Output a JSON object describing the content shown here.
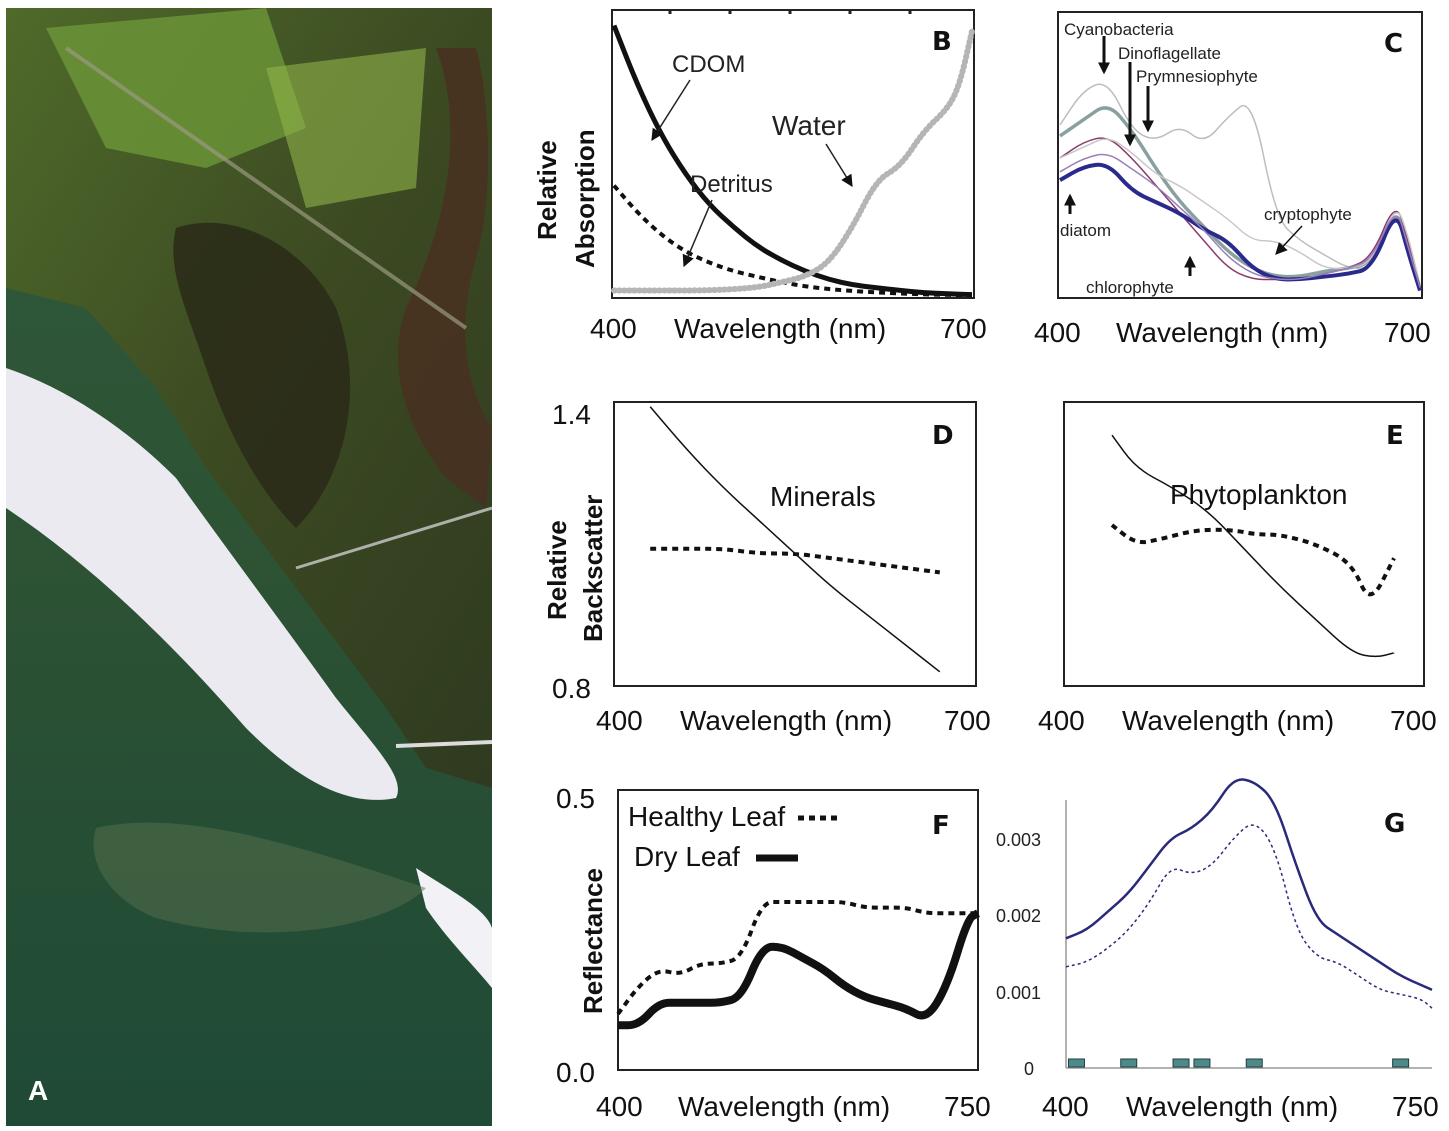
{
  "panel_a": {
    "letter": "A"
  },
  "chart_data": [
    {
      "id": "B",
      "type": "line",
      "letter": "B",
      "ylabel_lines": [
        "Relative",
        "Absorption"
      ],
      "xlabel": "Wavelength (nm)",
      "xlim": [
        400,
        700
      ],
      "ylim": [
        0,
        1
      ],
      "tick_labels_x": [
        "400",
        "700"
      ],
      "series": [
        {
          "name": "CDOM",
          "style": "solid-black",
          "x": [
            400,
            420,
            440,
            460,
            480,
            500,
            520,
            540,
            560,
            580,
            600,
            620,
            640,
            660,
            680,
            700
          ],
          "y": [
            0.98,
            0.76,
            0.58,
            0.44,
            0.33,
            0.25,
            0.18,
            0.13,
            0.09,
            0.06,
            0.04,
            0.03,
            0.02,
            0.012,
            0.008,
            0.005
          ]
        },
        {
          "name": "Detritus",
          "style": "dotted-black",
          "x": [
            400,
            420,
            440,
            460,
            480,
            500,
            520,
            540,
            560,
            580,
            600,
            620,
            640,
            660,
            680,
            700
          ],
          "y": [
            0.4,
            0.3,
            0.22,
            0.16,
            0.12,
            0.09,
            0.07,
            0.05,
            0.035,
            0.025,
            0.018,
            0.013,
            0.009,
            0.006,
            0.004,
            0.003
          ]
        },
        {
          "name": "Water",
          "style": "gray-dots",
          "x": [
            400,
            440,
            480,
            520,
            540,
            560,
            580,
            600,
            620,
            640,
            660,
            680,
            690,
            700
          ],
          "y": [
            0.02,
            0.02,
            0.02,
            0.03,
            0.05,
            0.07,
            0.12,
            0.25,
            0.42,
            0.47,
            0.6,
            0.68,
            0.77,
            0.96
          ]
        }
      ]
    },
    {
      "id": "C",
      "type": "line",
      "letter": "C",
      "xlabel": "Wavelength (nm)",
      "xlim": [
        400,
        700
      ],
      "ylim": [
        0,
        1
      ],
      "tick_labels_x": [
        "400",
        "700"
      ],
      "annotations": [
        "Cyanobacteria",
        "Dinoflagellate",
        "Prymnesiophyte",
        "cryptophyte",
        "diatom",
        "chlorophyte"
      ],
      "series": [
        {
          "name": "Cyanobacteria",
          "color": "#bdbdbd",
          "x": [
            400,
            420,
            440,
            460,
            480,
            500,
            520,
            540,
            560,
            580,
            600,
            620,
            640,
            660,
            680,
            690,
            700
          ],
          "y": [
            0.62,
            0.75,
            0.78,
            0.6,
            0.56,
            0.62,
            0.55,
            0.65,
            0.72,
            0.28,
            0.2,
            0.15,
            0.1,
            0.1,
            0.32,
            0.15,
            0.02
          ]
        },
        {
          "name": "Dinoflagellate",
          "color": "#8aa0a0",
          "x": [
            400,
            420,
            440,
            460,
            480,
            500,
            520,
            540,
            560,
            580,
            600,
            620,
            640,
            660,
            680,
            690,
            700
          ],
          "y": [
            0.58,
            0.64,
            0.7,
            0.6,
            0.46,
            0.34,
            0.25,
            0.16,
            0.1,
            0.07,
            0.07,
            0.09,
            0.1,
            0.12,
            0.33,
            0.18,
            0.02
          ]
        },
        {
          "name": "Prymnesiophyte",
          "color": "#8b3a6a",
          "x": [
            400,
            420,
            440,
            460,
            480,
            500,
            520,
            540,
            560,
            580,
            600,
            620,
            640,
            660,
            680,
            690,
            700
          ],
          "y": [
            0.5,
            0.56,
            0.58,
            0.5,
            0.4,
            0.3,
            0.2,
            0.1,
            0.06,
            0.06,
            0.06,
            0.08,
            0.1,
            0.14,
            0.35,
            0.2,
            0.03
          ]
        },
        {
          "name": "cryptophyte",
          "color": "#c8c8c8",
          "x": [
            400,
            420,
            440,
            460,
            480,
            500,
            520,
            540,
            560,
            580,
            600,
            620,
            640,
            660,
            680,
            690,
            700
          ],
          "y": [
            0.5,
            0.54,
            0.58,
            0.52,
            0.44,
            0.4,
            0.34,
            0.28,
            0.2,
            0.2,
            0.16,
            0.1,
            0.1,
            0.12,
            0.34,
            0.22,
            0.04
          ]
        },
        {
          "name": "diatom",
          "color": "#2a2a8c",
          "x": [
            400,
            420,
            440,
            460,
            480,
            500,
            520,
            540,
            560,
            580,
            600,
            620,
            640,
            660,
            680,
            690,
            700
          ],
          "y": [
            0.42,
            0.47,
            0.48,
            0.38,
            0.34,
            0.3,
            0.24,
            0.2,
            0.1,
            0.06,
            0.06,
            0.07,
            0.08,
            0.1,
            0.32,
            0.16,
            0.02
          ]
        },
        {
          "name": "chlorophyte",
          "color": "#9a7fb8",
          "x": [
            400,
            420,
            440,
            460,
            480,
            500,
            520,
            540,
            560,
            580,
            600,
            620,
            640,
            660,
            680,
            690,
            700
          ],
          "y": [
            0.45,
            0.5,
            0.52,
            0.46,
            0.4,
            0.32,
            0.24,
            0.14,
            0.08,
            0.06,
            0.06,
            0.08,
            0.1,
            0.13,
            0.33,
            0.18,
            0.03
          ]
        }
      ]
    },
    {
      "id": "D",
      "type": "line",
      "letter": "D",
      "title": "Minerals",
      "ylabel_lines": [
        "Relative",
        "Backscatter"
      ],
      "xlabel": "Wavelength (nm)",
      "xlim": [
        400,
        700
      ],
      "ylim": [
        0.8,
        1.4
      ],
      "tick_labels_x": [
        "400",
        "700"
      ],
      "tick_labels_y": [
        "1.4",
        "0.8"
      ],
      "series": [
        {
          "style": "solid-thin",
          "x": [
            430,
            460,
            490,
            520,
            550,
            580,
            610,
            640,
            670
          ],
          "y": [
            1.39,
            1.3,
            1.22,
            1.15,
            1.08,
            1.01,
            0.95,
            0.89,
            0.83
          ]
        },
        {
          "style": "dotted-thick",
          "x": [
            430,
            460,
            490,
            520,
            550,
            580,
            610,
            640,
            670
          ],
          "y": [
            1.09,
            1.09,
            1.09,
            1.08,
            1.08,
            1.07,
            1.06,
            1.05,
            1.04
          ]
        }
      ]
    },
    {
      "id": "E",
      "type": "line",
      "letter": "E",
      "title": "Phytoplankton",
      "xlabel": "Wavelength (nm)",
      "xlim": [
        400,
        700
      ],
      "ylim": [
        0.8,
        1.4
      ],
      "tick_labels_x": [
        "400",
        "700"
      ],
      "series": [
        {
          "style": "solid-thin",
          "x": [
            440,
            460,
            490,
            520,
            550,
            580,
            610,
            640,
            660,
            675
          ],
          "y": [
            1.33,
            1.26,
            1.22,
            1.17,
            1.09,
            1.01,
            0.94,
            0.87,
            0.86,
            0.87
          ]
        },
        {
          "style": "dotted-thick",
          "x": [
            440,
            460,
            480,
            510,
            540,
            560,
            580,
            610,
            640,
            655,
            675
          ],
          "y": [
            1.14,
            1.1,
            1.11,
            1.13,
            1.13,
            1.12,
            1.12,
            1.1,
            1.06,
            0.97,
            1.07
          ]
        }
      ]
    },
    {
      "id": "F",
      "type": "line",
      "letter": "F",
      "ylabel_lines": [
        "Reflectance"
      ],
      "xlabel": "Wavelength (nm)",
      "xlim": [
        400,
        750
      ],
      "ylim": [
        0,
        0.5
      ],
      "tick_labels_x": [
        "400",
        "750"
      ],
      "tick_labels_y": [
        "0.5",
        "0.0"
      ],
      "series": [
        {
          "name": "Healthy Leaf",
          "style": "dotted-thick",
          "x": [
            400,
            420,
            440,
            460,
            480,
            500,
            520,
            540,
            560,
            580,
            600,
            620,
            640,
            660,
            680,
            700,
            720,
            740,
            750
          ],
          "y": [
            0.1,
            0.15,
            0.18,
            0.17,
            0.19,
            0.19,
            0.2,
            0.3,
            0.3,
            0.3,
            0.3,
            0.3,
            0.29,
            0.29,
            0.29,
            0.28,
            0.28,
            0.28,
            0.28
          ]
        },
        {
          "name": "Dry Leaf",
          "style": "solid-thick",
          "x": [
            400,
            420,
            440,
            460,
            480,
            500,
            520,
            540,
            560,
            580,
            600,
            620,
            640,
            660,
            680,
            700,
            720,
            740,
            750
          ],
          "y": [
            0.08,
            0.08,
            0.12,
            0.12,
            0.12,
            0.12,
            0.13,
            0.22,
            0.22,
            0.2,
            0.18,
            0.15,
            0.13,
            0.12,
            0.11,
            0.09,
            0.15,
            0.27,
            0.28
          ]
        }
      ]
    },
    {
      "id": "G",
      "type": "line",
      "letter": "G",
      "xlabel": "Wavelength (nm)",
      "xlim": [
        400,
        750
      ],
      "ylim": [
        0,
        0.003
      ],
      "tick_labels_x": [
        "400",
        "750"
      ],
      "tick_labels_y": [
        "0.003",
        "0.002",
        "0.001",
        "0"
      ],
      "band_markers_nm": [
        410,
        460,
        510,
        530,
        580,
        720
      ],
      "series": [
        {
          "style": "solid-navy",
          "x": [
            400,
            420,
            440,
            460,
            480,
            500,
            520,
            540,
            560,
            580,
            600,
            620,
            640,
            660,
            680,
            700,
            720,
            740,
            750
          ],
          "y": [
            0.00141,
            0.0015,
            0.0017,
            0.0019,
            0.0022,
            0.0025,
            0.0026,
            0.0028,
            0.00315,
            0.00312,
            0.0029,
            0.0022,
            0.0016,
            0.00145,
            0.0013,
            0.00115,
            0.001,
            0.0009,
            0.00085
          ]
        },
        {
          "style": "dotted-navy",
          "x": [
            400,
            420,
            440,
            460,
            480,
            500,
            520,
            540,
            560,
            580,
            600,
            620,
            640,
            660,
            680,
            700,
            720,
            740,
            750
          ],
          "y": [
            0.0011,
            0.00115,
            0.0013,
            0.0015,
            0.0018,
            0.0022,
            0.0021,
            0.0022,
            0.0025,
            0.0027,
            0.0024,
            0.0015,
            0.0012,
            0.00115,
            0.001,
            0.00085,
            0.0008,
            0.00075,
            0.00065
          ]
        }
      ]
    }
  ]
}
